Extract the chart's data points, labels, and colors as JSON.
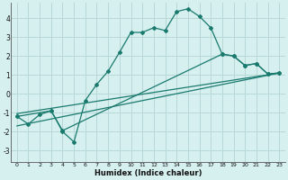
{
  "xlabel": "Humidex (Indice chaleur)",
  "bg_color": "#d6efef",
  "grid_color": "#b8d8d8",
  "line_color": "#1a7a6e",
  "x_ticks": [
    0,
    1,
    2,
    3,
    4,
    5,
    6,
    7,
    8,
    9,
    10,
    11,
    12,
    13,
    14,
    15,
    16,
    17,
    18,
    19,
    20,
    21,
    22,
    23
  ],
  "y_ticks": [
    -3,
    -2,
    -1,
    0,
    1,
    2,
    3,
    4
  ],
  "xlim": [
    -0.5,
    23.5
  ],
  "ylim": [
    -3.6,
    4.8
  ],
  "series1_x": [
    0,
    1,
    2,
    3,
    4,
    5,
    6,
    7,
    8,
    9,
    10,
    11,
    12,
    13,
    14,
    15,
    16,
    17,
    18,
    19,
    20,
    21,
    22,
    23
  ],
  "series1_y": [
    -1.2,
    -1.6,
    -1.1,
    -0.9,
    -2.0,
    -2.55,
    -0.35,
    0.5,
    1.2,
    2.2,
    3.25,
    3.25,
    3.5,
    3.35,
    4.35,
    4.5,
    4.1,
    3.5,
    2.1,
    2.0,
    1.5,
    1.6,
    1.05,
    1.1
  ],
  "series2_x": [
    0,
    3,
    4,
    18,
    19,
    20,
    21,
    22,
    23
  ],
  "series2_y": [
    -1.2,
    -0.9,
    -1.95,
    2.1,
    2.0,
    1.5,
    1.6,
    1.05,
    1.1
  ],
  "line1_x": [
    0,
    23
  ],
  "line1_y": [
    -1.05,
    1.1
  ],
  "line2_x": [
    0,
    23
  ],
  "line2_y": [
    -1.7,
    1.1
  ]
}
